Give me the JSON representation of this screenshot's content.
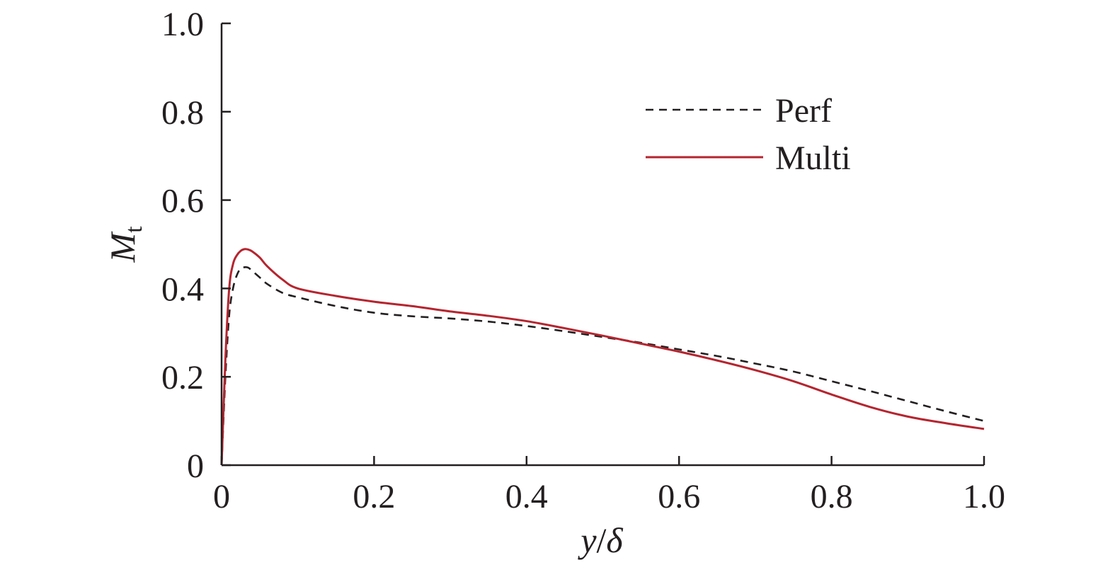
{
  "chart_data": {
    "type": "line",
    "title": "",
    "xlabel": {
      "var": "y",
      "sep": "/",
      "ref": "δ"
    },
    "ylabel": {
      "main": "M",
      "sub": "t"
    },
    "xlim": [
      0,
      1.0
    ],
    "ylim": [
      0,
      1.0
    ],
    "grid": false,
    "legend_position": "top-right",
    "x_ticks": [
      {
        "value": 0,
        "label": "0"
      },
      {
        "value": 0.2,
        "label": "0.2"
      },
      {
        "value": 0.4,
        "label": "0.4"
      },
      {
        "value": 0.6,
        "label": "0.6"
      },
      {
        "value": 0.8,
        "label": "0.8"
      },
      {
        "value": 1.0,
        "label": "1.0"
      }
    ],
    "y_ticks": [
      {
        "value": 0,
        "label": "0"
      },
      {
        "value": 0.2,
        "label": "0.2"
      },
      {
        "value": 0.4,
        "label": "0.4"
      },
      {
        "value": 0.6,
        "label": "0.6"
      },
      {
        "value": 0.8,
        "label": "0.8"
      },
      {
        "value": 1.0,
        "label": "1.0"
      }
    ],
    "series": [
      {
        "name": "Perf",
        "color": "#231f20",
        "style": "dashed",
        "x": [
          0,
          0.005,
          0.01,
          0.015,
          0.02,
          0.025,
          0.03,
          0.035,
          0.04,
          0.05,
          0.06,
          0.08,
          0.1,
          0.15,
          0.2,
          0.25,
          0.3,
          0.35,
          0.4,
          0.45,
          0.5,
          0.55,
          0.6,
          0.65,
          0.7,
          0.75,
          0.8,
          0.85,
          0.9,
          0.95,
          1.0
        ],
        "y": [
          0,
          0.2,
          0.34,
          0.4,
          0.43,
          0.445,
          0.448,
          0.447,
          0.44,
          0.425,
          0.41,
          0.39,
          0.38,
          0.36,
          0.345,
          0.337,
          0.332,
          0.325,
          0.315,
          0.303,
          0.29,
          0.277,
          0.262,
          0.247,
          0.23,
          0.212,
          0.19,
          0.168,
          0.145,
          0.122,
          0.1
        ]
      },
      {
        "name": "Multi",
        "color": "#b5252f",
        "style": "solid",
        "x": [
          0,
          0.005,
          0.01,
          0.015,
          0.02,
          0.025,
          0.03,
          0.035,
          0.04,
          0.05,
          0.06,
          0.08,
          0.1,
          0.15,
          0.2,
          0.25,
          0.3,
          0.35,
          0.4,
          0.45,
          0.5,
          0.55,
          0.6,
          0.65,
          0.7,
          0.75,
          0.8,
          0.85,
          0.9,
          0.95,
          1.0
        ],
        "y": [
          0,
          0.24,
          0.4,
          0.455,
          0.475,
          0.485,
          0.489,
          0.488,
          0.484,
          0.47,
          0.45,
          0.42,
          0.4,
          0.383,
          0.37,
          0.36,
          0.348,
          0.338,
          0.326,
          0.31,
          0.293,
          0.275,
          0.257,
          0.237,
          0.215,
          0.19,
          0.16,
          0.132,
          0.11,
          0.095,
          0.082
        ]
      }
    ]
  }
}
